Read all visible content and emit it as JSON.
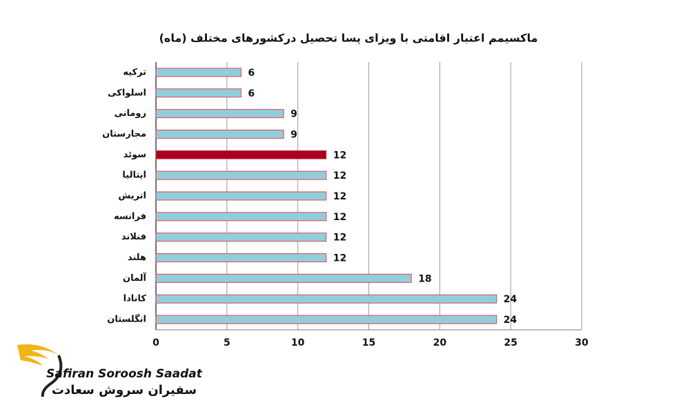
{
  "chart_data": {
    "type": "barh",
    "title": "ماکسیمم اعتبار اقامتی با ویزای پسا تحصیل درکشورهای مختلف (ماه)",
    "categories": [
      "ترکیه",
      "اسلواکی",
      "رومانی",
      "مجارستان",
      "سوئد",
      "ایتالیا",
      "اتریش",
      "فرانسه",
      "فنلاند",
      "هلند",
      "آلمان",
      "کانادا",
      "انگلستان"
    ],
    "values": [
      6,
      6,
      9,
      9,
      12,
      12,
      12,
      12,
      12,
      12,
      18,
      24,
      24
    ],
    "colors": [
      "#92cddc",
      "#92cddc",
      "#92cddc",
      "#92cddc",
      "#a50021",
      "#92cddc",
      "#92cddc",
      "#92cddc",
      "#92cddc",
      "#92cddc",
      "#92cddc",
      "#92cddc",
      "#92cddc"
    ],
    "edgecolor": "#e0454f",
    "xlim": [
      0,
      30
    ],
    "xticks": [
      0,
      5,
      10,
      15,
      20,
      25,
      30
    ],
    "grid": true
  },
  "logo": {
    "name": "Safiran Soroosh Saadat",
    "name_fa": "سفیران سروش سعادت"
  }
}
